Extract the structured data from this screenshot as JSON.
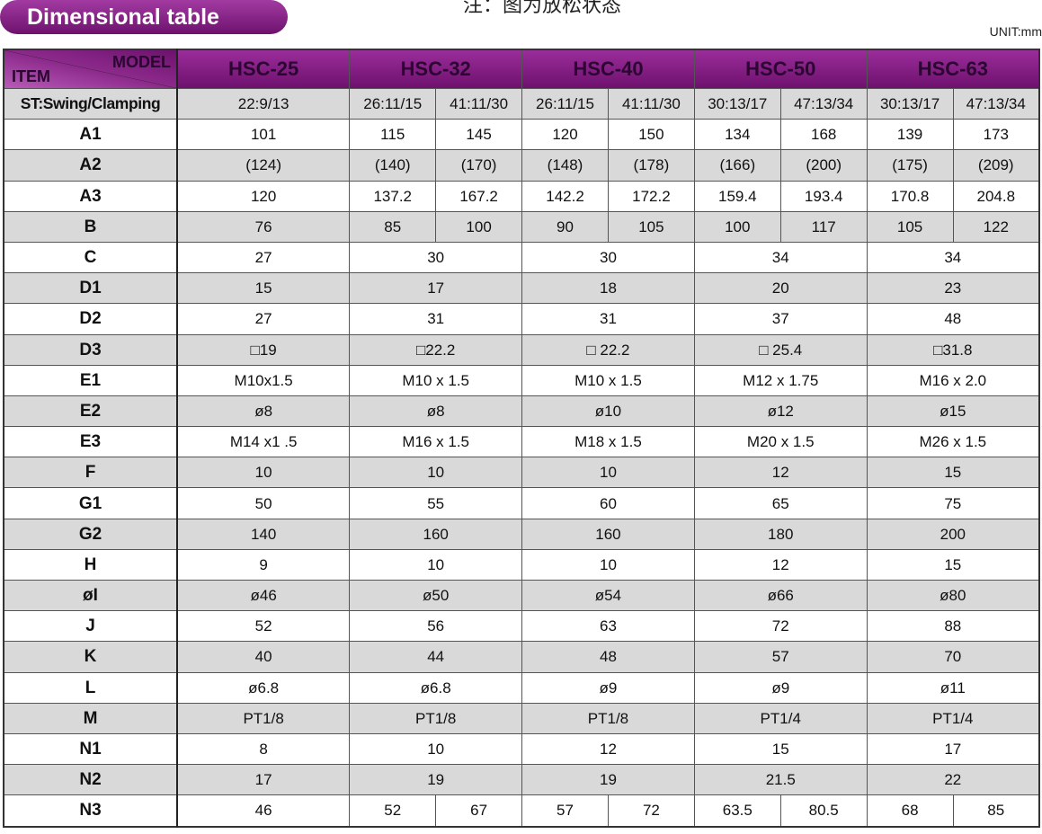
{
  "header": {
    "title": "Dimensional table",
    "note": "注：图为放松状态",
    "unit": "UNIT:mm"
  },
  "table": {
    "corner_item": "ITEM",
    "corner_model": "MODEL",
    "models": [
      "HSC-25",
      "HSC-32",
      "HSC-40",
      "HSC-50",
      "HSC-63"
    ],
    "rows": [
      {
        "label": "ST:Swing/Clamping",
        "cells": [
          "22:9/13",
          "26:11/15",
          "41:11/30",
          "26:11/15",
          "41:11/30",
          "30:13/17",
          "47:13/34",
          "30:13/17",
          "47:13/34"
        ]
      },
      {
        "label": "A1",
        "cells": [
          "101",
          "115",
          "145",
          "120",
          "150",
          "134",
          "168",
          "139",
          "173"
        ]
      },
      {
        "label": "A2",
        "cells": [
          "(124)",
          "(140)",
          "(170)",
          "(148)",
          "(178)",
          "(166)",
          "(200)",
          "(175)",
          "(209)"
        ]
      },
      {
        "label": "A3",
        "cells": [
          "120",
          "137.2",
          "167.2",
          "142.2",
          "172.2",
          "159.4",
          "193.4",
          "170.8",
          "204.8"
        ]
      },
      {
        "label": "B",
        "cells": [
          "76",
          "85",
          "100",
          "90",
          "105",
          "100",
          "117",
          "105",
          "122"
        ]
      },
      {
        "label": "C",
        "cells": [
          "27",
          "30",
          "30",
          "34",
          "34"
        ]
      },
      {
        "label": "D1",
        "cells": [
          "15",
          "17",
          "18",
          "20",
          "23"
        ]
      },
      {
        "label": "D2",
        "cells": [
          "27",
          "31",
          "31",
          "37",
          "48"
        ]
      },
      {
        "label": "D3",
        "cells": [
          "□19",
          "□22.2",
          "□ 22.2",
          "□ 25.4",
          "□31.8"
        ]
      },
      {
        "label": "E1",
        "cells": [
          "M10x1.5",
          "M10 x 1.5",
          "M10 x 1.5",
          "M12 x 1.75",
          "M16 x 2.0"
        ]
      },
      {
        "label": "E2",
        "cells": [
          "ø8",
          "ø8",
          "ø10",
          "ø12",
          "ø15"
        ]
      },
      {
        "label": "E3",
        "cells": [
          "M14 x1 .5",
          "M16 x 1.5",
          "M18 x 1.5",
          "M20 x 1.5",
          "M26 x 1.5"
        ]
      },
      {
        "label": "F",
        "cells": [
          "10",
          "10",
          "10",
          "12",
          "15"
        ]
      },
      {
        "label": "G1",
        "cells": [
          "50",
          "55",
          "60",
          "65",
          "75"
        ]
      },
      {
        "label": "G2",
        "cells": [
          "140",
          "160",
          "160",
          "180",
          "200"
        ]
      },
      {
        "label": "H",
        "cells": [
          "9",
          "10",
          "10",
          "12",
          "15"
        ]
      },
      {
        "label": "øI",
        "cells": [
          "ø46",
          "ø50",
          "ø54",
          "ø66",
          "ø80"
        ]
      },
      {
        "label": "J",
        "cells": [
          "52",
          "56",
          "63",
          "72",
          "88"
        ]
      },
      {
        "label": "K",
        "cells": [
          "40",
          "44",
          "48",
          "57",
          "70"
        ]
      },
      {
        "label": "L",
        "cells": [
          "ø6.8",
          "ø6.8",
          "ø9",
          "ø9",
          "ø11"
        ]
      },
      {
        "label": "M",
        "cells": [
          "PT1/8",
          "PT1/8",
          "PT1/8",
          "PT1/4",
          "PT1/4"
        ]
      },
      {
        "label": "N1",
        "cells": [
          "8",
          "10",
          "12",
          "15",
          "17"
        ]
      },
      {
        "label": "N2",
        "cells": [
          "17",
          "19",
          "19",
          "21.5",
          "22"
        ]
      },
      {
        "label": "N3",
        "cells": [
          "46",
          "52",
          "67",
          "57",
          "72",
          "63.5",
          "80.5",
          "68",
          "85"
        ]
      }
    ]
  }
}
